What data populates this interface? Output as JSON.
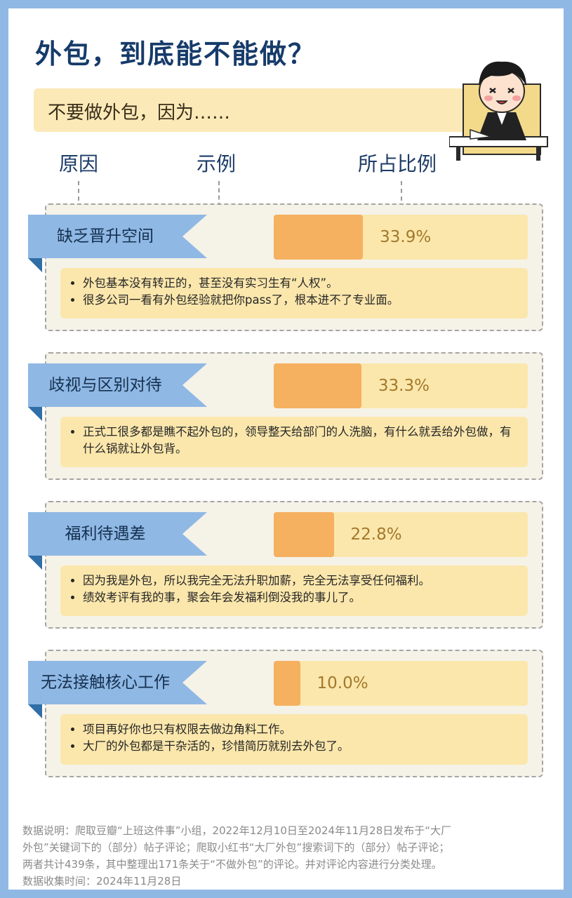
{
  "title": "外包，到底能不能做？",
  "subtitle": "不要做外包，因为……",
  "columns": [
    "原因",
    "示例",
    "所占比例"
  ],
  "chart_data": {
    "type": "bar",
    "categories": [
      "缺乏晋升空间",
      "歧视与区别对待",
      "福利待遇差",
      "无法接触核心工作"
    ],
    "values": [
      33.9,
      33.3,
      22.8,
      10.0
    ],
    "value_labels": [
      "33.9%",
      "33.3%",
      "22.8%",
      "10.0%"
    ],
    "ylim": [
      0,
      100
    ]
  },
  "reasons": [
    {
      "label": "缺乏晋升空间",
      "pct": "33.9%",
      "examples": [
        "外包基本没有转正的，甚至没有实习生有“人权”。",
        "很多公司一看有外包经验就把你pass了，根本进不了专业面。"
      ]
    },
    {
      "label": "歧视与区别对待",
      "pct": "33.3%",
      "examples": [
        "正式工很多都是瞧不起外包的，领导整天给部门的人洗脑，有什么就丢给外包做，有什么锅就让外包背。"
      ]
    },
    {
      "label": "福利待遇差",
      "pct": "22.8%",
      "examples": [
        "因为我是外包，所以我完全无法升职加薪，完全无法享受任何福利。",
        "绩效考评有我的事，聚会年会发福利倒没我的事儿了。"
      ]
    },
    {
      "label": "无法接触核心工作",
      "pct": "10.0%",
      "examples": [
        "项目再好你也只有权限去做边角料工作。",
        "大厂的外包都是干杂活的，珍惜简历就别去外包了。"
      ]
    }
  ],
  "footer": {
    "line1": "数据说明：爬取豆瓣“上班这件事”小组，2022年12月10日至2024年11月28日发布于“大厂",
    "line2": "外包”关键词下的（部分）帖子评论；爬取小红书“大厂外包”搜索词下的（部分）帖子评论；",
    "line3": "两者共计439条，其中整理出171条关于“不做外包”的评论。并对评论内容进行分类处理。",
    "line4": "数据收集时间：2024年11月28日"
  },
  "colors": {
    "flag": "#8fb8e4",
    "bar_fill": "#f5b060",
    "bar_bg": "#fbe7ac",
    "title": "#163b6a"
  }
}
